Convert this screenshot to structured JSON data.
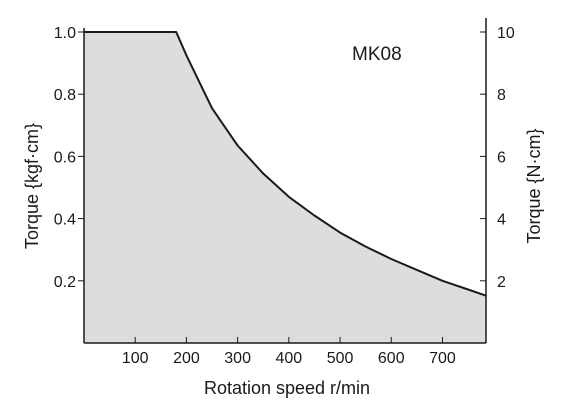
{
  "chart_data": {
    "type": "area",
    "title": "MK08",
    "xlabel": "Rotation speed r/min",
    "ylabel_left": "Torque {kgf·cm}",
    "ylabel_right": "Torque {N·cm}",
    "xlim": [
      0,
      785
    ],
    "ylim_left": [
      0,
      1.0
    ],
    "ylim_right": [
      0,
      10
    ],
    "x_ticks": [
      100,
      200,
      300,
      400,
      500,
      600,
      700
    ],
    "y_ticks_left": [
      0.2,
      0.4,
      0.6,
      0.8,
      1.0
    ],
    "y_ticks_left_labels": [
      "0.2",
      "0.4",
      "0.6",
      "0.8",
      "1.0"
    ],
    "y_ticks_right": [
      2,
      4,
      6,
      8,
      10
    ],
    "grid": false,
    "fill_color": "#dcdddd",
    "line_color": "#1a1a1a",
    "series": [
      {
        "x": [
          0,
          180,
          200,
          250,
          300,
          350,
          400,
          450,
          500,
          550,
          600,
          650,
          700,
          750,
          785
        ],
        "y": [
          1.0,
          1.0,
          0.925,
          0.755,
          0.635,
          0.545,
          0.47,
          0.41,
          0.355,
          0.31,
          0.27,
          0.235,
          0.2,
          0.172,
          0.152
        ]
      }
    ]
  }
}
